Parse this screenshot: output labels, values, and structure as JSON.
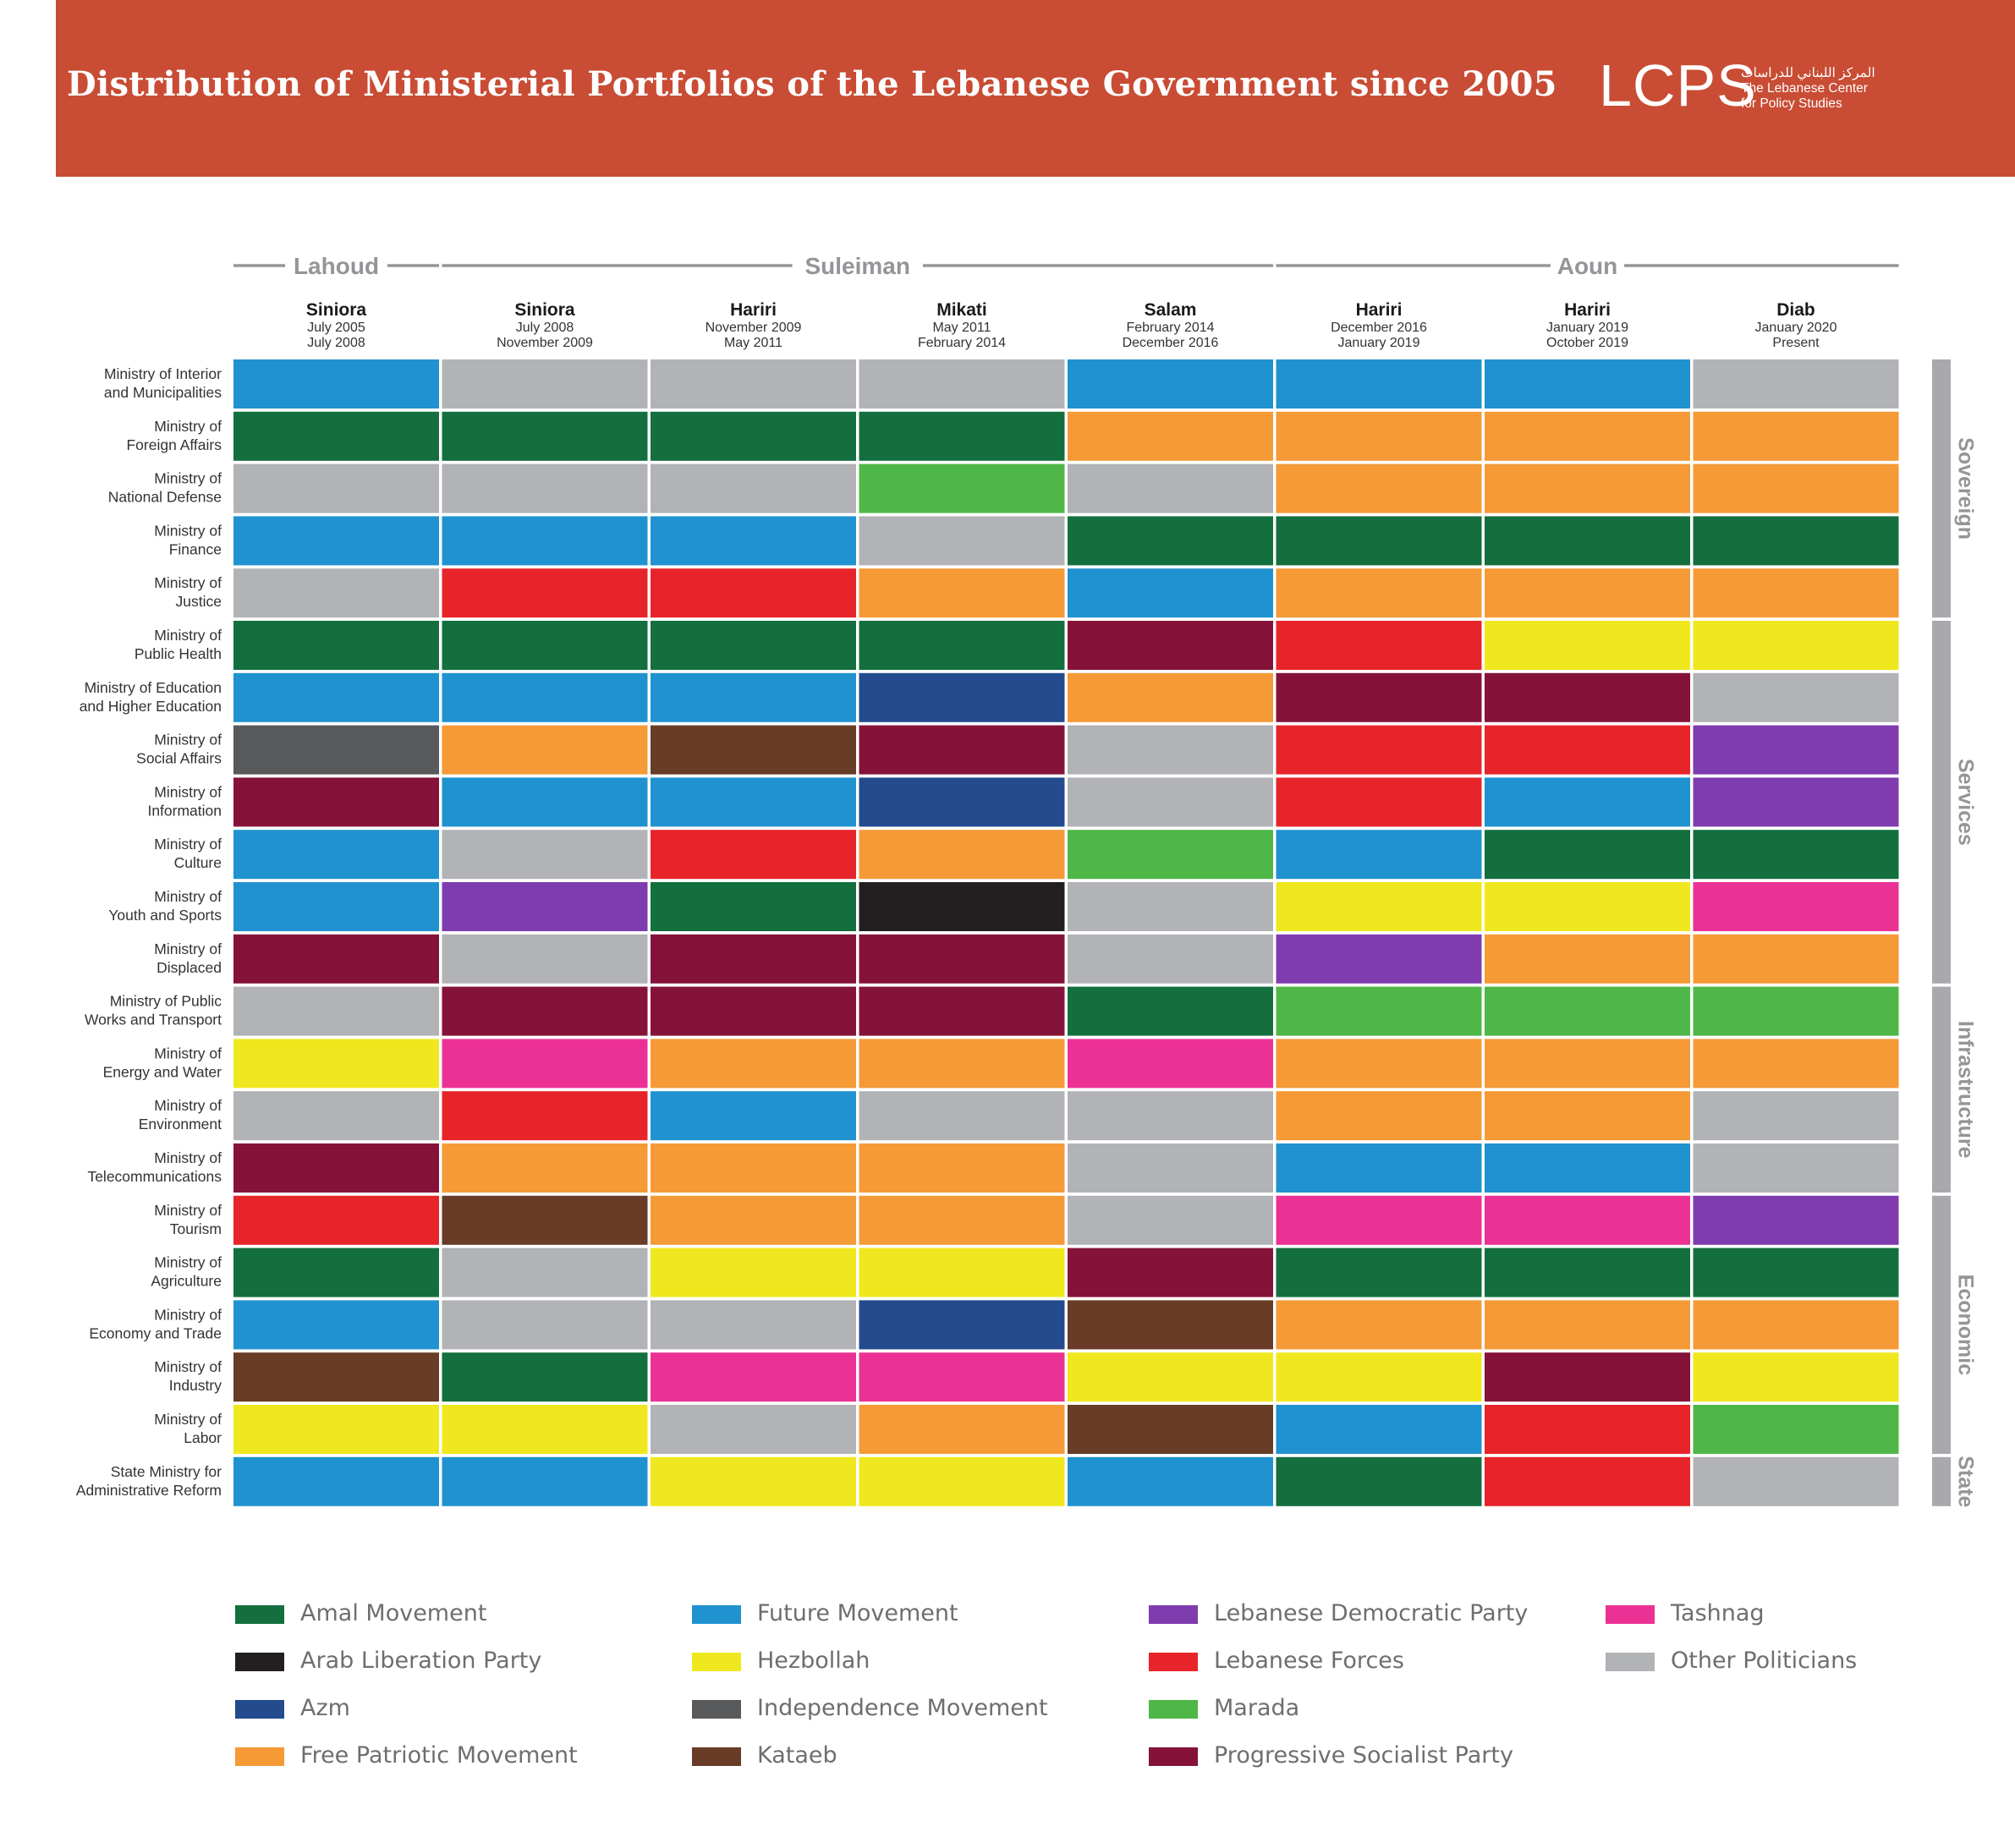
{
  "header": {
    "title": "Distribution of Ministerial Portfolios of the Lebanese Government since 2005",
    "logo": {
      "mark": "LCPS",
      "arabic": "المركز اللبناني للدراسات",
      "line1": "The Lebanese Center",
      "line2": "for Policy Studies"
    }
  },
  "chart_data": {
    "type": "table",
    "presidents": [
      {
        "name": "Lahoud",
        "span": [
          0,
          0
        ]
      },
      {
        "name": "Suleiman",
        "span": [
          1,
          4
        ]
      },
      {
        "name": "Aoun",
        "span": [
          5,
          7
        ]
      }
    ],
    "governments": [
      {
        "pm": "Siniora",
        "start": "July 2005",
        "end": "July 2008"
      },
      {
        "pm": "Siniora",
        "start": "July 2008",
        "end": "November 2009"
      },
      {
        "pm": "Hariri",
        "start": "November 2009",
        "end": "May 2011"
      },
      {
        "pm": "Mikati",
        "start": "May 2011",
        "end": "February 2014"
      },
      {
        "pm": "Salam",
        "start": "February 2014",
        "end": "December 2016"
      },
      {
        "pm": "Hariri",
        "start": "December 2016",
        "end": "January 2019"
      },
      {
        "pm": "Hariri",
        "start": "January 2019",
        "end": "October 2019"
      },
      {
        "pm": "Diab",
        "start": "January 2020",
        "end": "Present"
      }
    ],
    "groups": [
      {
        "name": "Sovereign",
        "rows": [
          0,
          4
        ]
      },
      {
        "name": "Services",
        "rows": [
          5,
          11
        ]
      },
      {
        "name": "Infrastructure",
        "rows": [
          12,
          15
        ]
      },
      {
        "name": "Economic",
        "rows": [
          16,
          20
        ]
      },
      {
        "name": "State",
        "rows": [
          21,
          21
        ]
      }
    ],
    "ministries": [
      {
        "name": [
          "Ministry of Interior",
          "and Municipalities"
        ],
        "parties": [
          "Future Movement",
          "Other Politicians",
          "Other Politicians",
          "Other Politicians",
          "Future Movement",
          "Future Movement",
          "Future Movement",
          "Other Politicians"
        ]
      },
      {
        "name": [
          "Ministry of",
          "Foreign Affairs"
        ],
        "parties": [
          "Amal Movement",
          "Amal Movement",
          "Amal Movement",
          "Amal Movement",
          "Free Patriotic Movement",
          "Free Patriotic Movement",
          "Free Patriotic Movement",
          "Free Patriotic Movement"
        ]
      },
      {
        "name": [
          "Ministry of",
          "National Defense"
        ],
        "parties": [
          "Other Politicians",
          "Other Politicians",
          "Other Politicians",
          "Marada",
          "Other Politicians",
          "Free Patriotic Movement",
          "Free Patriotic Movement",
          "Free Patriotic Movement"
        ]
      },
      {
        "name": [
          "Ministry of",
          "Finance"
        ],
        "parties": [
          "Future Movement",
          "Future Movement",
          "Future Movement",
          "Other Politicians",
          "Amal Movement",
          "Amal Movement",
          "Amal Movement",
          "Amal Movement"
        ]
      },
      {
        "name": [
          "Ministry of",
          "Justice"
        ],
        "parties": [
          "Other Politicians",
          "Lebanese Forces",
          "Lebanese Forces",
          "Free Patriotic Movement",
          "Future Movement",
          "Free Patriotic Movement",
          "Free Patriotic Movement",
          "Free Patriotic Movement"
        ]
      },
      {
        "name": [
          "Ministry of",
          "Public Health"
        ],
        "parties": [
          "Amal Movement",
          "Amal Movement",
          "Amal Movement",
          "Amal Movement",
          "Progressive Socialist Party",
          "Lebanese Forces",
          "Hezbollah",
          "Hezbollah"
        ]
      },
      {
        "name": [
          "Ministry of Education",
          "and Higher Education"
        ],
        "parties": [
          "Future Movement",
          "Future Movement",
          "Future Movement",
          "Azm",
          "Free Patriotic Movement",
          "Progressive Socialist Party",
          "Progressive Socialist Party",
          "Other Politicians"
        ]
      },
      {
        "name": [
          "Ministry of",
          "Social Affairs"
        ],
        "parties": [
          "Independence Movement",
          "Free Patriotic Movement",
          "Kataeb",
          "Progressive Socialist Party",
          "Other Politicians",
          "Lebanese Forces",
          "Lebanese Forces",
          "Lebanese Democratic Party"
        ]
      },
      {
        "name": [
          "Ministry of",
          "Information"
        ],
        "parties": [
          "Progressive Socialist Party",
          "Future Movement",
          "Future Movement",
          "Azm",
          "Other Politicians",
          "Lebanese Forces",
          "Future Movement",
          "Lebanese Democratic Party"
        ]
      },
      {
        "name": [
          "Ministry of",
          "Culture"
        ],
        "parties": [
          "Future Movement",
          "Other Politicians",
          "Lebanese Forces",
          "Free Patriotic Movement",
          "Marada",
          "Future Movement",
          "Amal Movement",
          "Amal Movement"
        ]
      },
      {
        "name": [
          "Ministry of",
          "Youth and Sports"
        ],
        "parties": [
          "Future Movement",
          "Lebanese Democratic Party",
          "Amal Movement",
          "Arab Liberation Party",
          "Other Politicians",
          "Hezbollah",
          "Hezbollah",
          "Tashnag"
        ]
      },
      {
        "name": [
          "Ministry of",
          "Displaced"
        ],
        "parties": [
          "Progressive Socialist Party",
          "Other Politicians",
          "Progressive Socialist Party",
          "Progressive Socialist Party",
          "Other Politicians",
          "Lebanese Democratic Party",
          "Free Patriotic Movement",
          "Free Patriotic Movement"
        ]
      },
      {
        "name": [
          "Ministry of Public",
          "Works and Transport"
        ],
        "parties": [
          "Other Politicians",
          "Progressive Socialist Party",
          "Progressive Socialist Party",
          "Progressive Socialist Party",
          "Amal Movement",
          "Marada",
          "Marada",
          "Marada"
        ]
      },
      {
        "name": [
          "Ministry of",
          "Energy and Water"
        ],
        "parties": [
          "Hezbollah",
          "Tashnag",
          "Free Patriotic Movement",
          "Free Patriotic Movement",
          "Tashnag",
          "Free Patriotic Movement",
          "Free Patriotic Movement",
          "Free Patriotic Movement"
        ]
      },
      {
        "name": [
          "Ministry of",
          "Environment"
        ],
        "parties": [
          "Other Politicians",
          "Lebanese Forces",
          "Future Movement",
          "Other Politicians",
          "Other Politicians",
          "Free Patriotic Movement",
          "Free Patriotic Movement",
          "Other Politicians"
        ]
      },
      {
        "name": [
          "Ministry of",
          "Telecommunications"
        ],
        "parties": [
          "Progressive Socialist Party",
          "Free Patriotic Movement",
          "Free Patriotic Movement",
          "Free Patriotic Movement",
          "Other Politicians",
          "Future Movement",
          "Future Movement",
          "Other Politicians"
        ]
      },
      {
        "name": [
          "Ministry of",
          "Tourism"
        ],
        "parties": [
          "Lebanese Forces",
          "Kataeb",
          "Free Patriotic Movement",
          "Free Patriotic Movement",
          "Other Politicians",
          "Tashnag",
          "Tashnag",
          "Lebanese Democratic Party"
        ]
      },
      {
        "name": [
          "Ministry of",
          "Agriculture"
        ],
        "parties": [
          "Amal Movement",
          "Other Politicians",
          "Hezbollah",
          "Hezbollah",
          "Progressive Socialist Party",
          "Amal Movement",
          "Amal Movement",
          "Amal Movement"
        ]
      },
      {
        "name": [
          "Ministry of",
          "Economy and Trade"
        ],
        "parties": [
          "Future Movement",
          "Other Politicians",
          "Other Politicians",
          "Azm",
          "Kataeb",
          "Free Patriotic Movement",
          "Free Patriotic Movement",
          "Free Patriotic Movement"
        ]
      },
      {
        "name": [
          "Ministry of",
          "Industry"
        ],
        "parties": [
          "Kataeb",
          "Amal Movement",
          "Tashnag",
          "Tashnag",
          "Hezbollah",
          "Hezbollah",
          "Progressive Socialist Party",
          "Hezbollah"
        ]
      },
      {
        "name": [
          "Ministry of",
          "Labor"
        ],
        "parties": [
          "Hezbollah",
          "Hezbollah",
          "Other Politicians",
          "Free Patriotic Movement",
          "Kataeb",
          "Future Movement",
          "Lebanese Forces",
          "Marada"
        ]
      },
      {
        "name": [
          "State Ministry for",
          "Administrative Reform"
        ],
        "parties": [
          "Future Movement",
          "Future Movement",
          "Hezbollah",
          "Hezbollah",
          "Future Movement",
          "Amal Movement",
          "Lebanese Forces",
          "Other Politicians"
        ]
      }
    ],
    "legend": [
      {
        "name": "Amal Movement",
        "color": "#136f3e"
      },
      {
        "name": "Arab Liberation Party",
        "color": "#231f20"
      },
      {
        "name": "Azm",
        "color": "#234b8d"
      },
      {
        "name": "Free Patriotic Movement",
        "color": "#f59a36"
      },
      {
        "name": "Future Movement",
        "color": "#2092d0"
      },
      {
        "name": "Hezbollah",
        "color": "#f0e81e"
      },
      {
        "name": "Independence Movement",
        "color": "#58595b"
      },
      {
        "name": "Kataeb",
        "color": "#683c26"
      },
      {
        "name": "Lebanese Democratic Party",
        "color": "#7e3caf"
      },
      {
        "name": "Lebanese Forces",
        "color": "#e8242b"
      },
      {
        "name": "Marada",
        "color": "#4fb748"
      },
      {
        "name": "Progressive Socialist Party",
        "color": "#851339"
      },
      {
        "name": "Tashnag",
        "color": "#ec3195"
      },
      {
        "name": "Other Politicians",
        "color": "#b2b3b6"
      }
    ]
  }
}
